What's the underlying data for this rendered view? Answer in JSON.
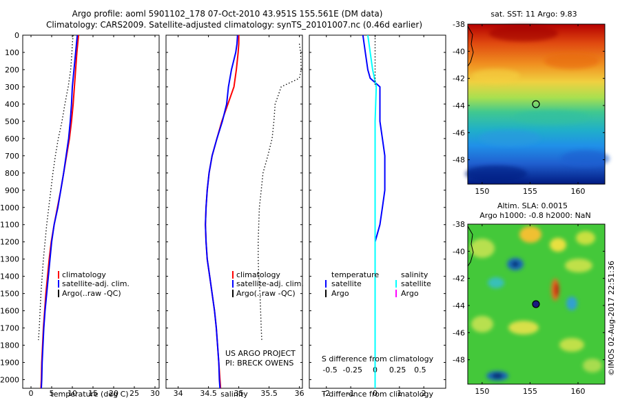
{
  "header": {
    "line1": "Argo profile: aoml 5901102_178 07-Oct-2010 43.951S 155.561E (DM data)",
    "line2": "Climatology: CARS2009. Satellite-adjusted climatology: synTS_20101007.nc (0.46d earlier)"
  },
  "depth_axis": {
    "ticks": [
      0,
      100,
      200,
      300,
      400,
      500,
      600,
      700,
      800,
      900,
      1000,
      1100,
      1200,
      1300,
      1400,
      1500,
      1600,
      1700,
      1800,
      1900,
      2000
    ],
    "range": [
      0,
      2050
    ],
    "inverted": true
  },
  "colors": {
    "climatology": "#ff0000",
    "satellite": "#0000ff",
    "argo": "#000000",
    "salinity_satellite": "#00ffff",
    "salinity_argo": "#ff00ff"
  },
  "chart_data": [
    {
      "type": "line",
      "title": "",
      "xlabel": "temperature (deg C)",
      "ylabel": "",
      "xlim": [
        -2,
        31
      ],
      "ylim": [
        2050,
        0
      ],
      "xticks": [
        0,
        5,
        10,
        15,
        20,
        25,
        30
      ],
      "legend": {
        "position": "bottom-right",
        "items": [
          "climatology",
          "satellite-adj. clim.",
          "Argo(..raw -QC)"
        ]
      },
      "series": [
        {
          "name": "climatology",
          "style": "solid",
          "points": [
            [
              11.5,
              0
            ],
            [
              11.3,
              50
            ],
            [
              11.1,
              100
            ],
            [
              10.8,
              200
            ],
            [
              10.5,
              300
            ],
            [
              10.2,
              400
            ],
            [
              9.8,
              500
            ],
            [
              9.3,
              600
            ],
            [
              8.6,
              700
            ],
            [
              7.9,
              800
            ],
            [
              7.2,
              900
            ],
            [
              6.4,
              1000
            ],
            [
              5.6,
              1100
            ],
            [
              4.9,
              1200
            ],
            [
              4.4,
              1300
            ],
            [
              4.0,
              1400
            ],
            [
              3.6,
              1500
            ],
            [
              3.3,
              1600
            ],
            [
              3.0,
              1700
            ],
            [
              2.8,
              1800
            ],
            [
              2.6,
              1900
            ],
            [
              2.5,
              2000
            ],
            [
              2.4,
              2050
            ]
          ]
        },
        {
          "name": "satellite-adj. clim.",
          "style": "solid",
          "points": [
            [
              11.2,
              0
            ],
            [
              11.0,
              50
            ],
            [
              10.8,
              100
            ],
            [
              10.4,
              200
            ],
            [
              10.0,
              300
            ],
            [
              9.8,
              400
            ],
            [
              9.5,
              500
            ],
            [
              9.1,
              600
            ],
            [
              8.5,
              700
            ],
            [
              7.9,
              800
            ],
            [
              7.2,
              900
            ],
            [
              6.5,
              1000
            ],
            [
              5.6,
              1100
            ],
            [
              5.0,
              1200
            ],
            [
              4.6,
              1300
            ],
            [
              4.2,
              1400
            ],
            [
              3.8,
              1500
            ],
            [
              3.4,
              1600
            ],
            [
              3.1,
              1700
            ],
            [
              2.9,
              1800
            ],
            [
              2.7,
              1900
            ],
            [
              2.6,
              2000
            ],
            [
              2.5,
              2050
            ]
          ]
        },
        {
          "name": "Argo(..raw -QC)",
          "style": "dotted",
          "points": [
            [
              10.2,
              0
            ],
            [
              10.0,
              50
            ],
            [
              9.9,
              100
            ],
            [
              9.6,
              200
            ],
            [
              9.0,
              300
            ],
            [
              8.2,
              400
            ],
            [
              7.5,
              500
            ],
            [
              6.6,
              600
            ],
            [
              5.9,
              700
            ],
            [
              5.3,
              800
            ],
            [
              4.8,
              900
            ],
            [
              4.3,
              1000
            ],
            [
              3.8,
              1100
            ],
            [
              3.4,
              1200
            ],
            [
              3.0,
              1300
            ],
            [
              2.7,
              1400
            ],
            [
              2.4,
              1500
            ],
            [
              2.2,
              1600
            ],
            [
              2.0,
              1700
            ],
            [
              1.8,
              1770
            ]
          ]
        }
      ]
    },
    {
      "type": "line",
      "title": "",
      "xlabel": "salinity",
      "ylabel": "",
      "xlim": [
        33.8,
        36.05
      ],
      "ylim": [
        2050,
        0
      ],
      "xticks": [
        34,
        34.5,
        35,
        35.5,
        36
      ],
      "legend": {
        "position": "bottom-right",
        "items": [
          "climatology",
          "satellite-adj. clim.",
          "Argo(..raw -QC)"
        ]
      },
      "series": [
        {
          "name": "climatology",
          "style": "solid",
          "points": [
            [
              35.0,
              0
            ],
            [
              35.0,
              50
            ],
            [
              34.99,
              100
            ],
            [
              34.96,
              200
            ],
            [
              34.92,
              300
            ],
            [
              34.82,
              400
            ],
            [
              34.72,
              500
            ],
            [
              34.64,
              600
            ],
            [
              34.56,
              700
            ],
            [
              34.51,
              800
            ],
            [
              34.48,
              900
            ],
            [
              34.46,
              1000
            ],
            [
              34.45,
              1100
            ],
            [
              34.46,
              1200
            ],
            [
              34.48,
              1300
            ],
            [
              34.52,
              1400
            ],
            [
              34.56,
              1500
            ],
            [
              34.6,
              1600
            ],
            [
              34.63,
              1700
            ],
            [
              34.65,
              1800
            ],
            [
              34.67,
              1900
            ],
            [
              34.69,
              2000
            ],
            [
              34.7,
              2050
            ]
          ]
        },
        {
          "name": "satellite-adj. clim.",
          "style": "solid",
          "points": [
            [
              34.98,
              0
            ],
            [
              34.97,
              50
            ],
            [
              34.95,
              100
            ],
            [
              34.88,
              200
            ],
            [
              34.83,
              300
            ],
            [
              34.8,
              400
            ],
            [
              34.73,
              500
            ],
            [
              34.64,
              600
            ],
            [
              34.56,
              700
            ],
            [
              34.51,
              800
            ],
            [
              34.48,
              900
            ],
            [
              34.46,
              1000
            ],
            [
              34.45,
              1100
            ],
            [
              34.46,
              1200
            ],
            [
              34.48,
              1300
            ],
            [
              34.52,
              1400
            ],
            [
              34.56,
              1500
            ],
            [
              34.6,
              1600
            ],
            [
              34.63,
              1700
            ],
            [
              34.65,
              1800
            ],
            [
              34.67,
              1900
            ],
            [
              34.68,
              2000
            ],
            [
              34.69,
              2050
            ]
          ]
        },
        {
          "name": "Argo(..raw -QC)",
          "style": "dotted",
          "points": [
            [
              36.0,
              50
            ],
            [
              36.02,
              100
            ],
            [
              36.03,
              200
            ],
            [
              36.0,
              250
            ],
            [
              35.7,
              300
            ],
            [
              35.6,
              400
            ],
            [
              35.58,
              500
            ],
            [
              35.55,
              600
            ],
            [
              35.48,
              700
            ],
            [
              35.4,
              800
            ],
            [
              35.37,
              900
            ],
            [
              35.34,
              1000
            ],
            [
              35.33,
              1100
            ],
            [
              35.32,
              1200
            ],
            [
              35.32,
              1300
            ],
            [
              35.33,
              1400
            ],
            [
              35.35,
              1500
            ],
            [
              35.36,
              1600
            ],
            [
              35.37,
              1700
            ],
            [
              35.38,
              1770
            ]
          ]
        }
      ]
    },
    {
      "type": "line",
      "title": "",
      "xlabel": "T difference from climatology",
      "ylabel": "",
      "xlim": [
        -2.7,
        2.9
      ],
      "ylim": [
        2050,
        0
      ],
      "xticks": [
        -2,
        -1,
        0,
        1,
        2
      ],
      "top_axis_label": "S difference from climatology",
      "top_ticks": [
        -0.5,
        -0.25,
        0,
        0.25,
        0.5
      ],
      "legend": {
        "position": "bottom",
        "headers": [
          "temperature",
          "salinity"
        ],
        "items": [
          [
            "satellite",
            "Argo"
          ],
          [
            "satellite",
            "Argo"
          ]
        ]
      },
      "series": [
        {
          "name": "temperature satellite",
          "style": "solid",
          "points": [
            [
              -0.5,
              0
            ],
            [
              -0.4,
              100
            ],
            [
              -0.3,
              200
            ],
            [
              -0.2,
              250
            ],
            [
              0.2,
              300
            ],
            [
              0.2,
              500
            ],
            [
              0.3,
              600
            ],
            [
              0.4,
              700
            ],
            [
              0.4,
              900
            ],
            [
              0.3,
              1000
            ],
            [
              0.2,
              1100
            ],
            [
              0.0,
              1200
            ]
          ]
        },
        {
          "name": "salinity satellite",
          "style": "solid",
          "points": [
            [
              -0.3,
              0
            ],
            [
              -0.2,
              100
            ],
            [
              -0.1,
              200
            ],
            [
              0.05,
              300
            ],
            [
              0.0,
              500
            ],
            [
              0.0,
              2050
            ]
          ]
        },
        {
          "name": "zero line",
          "style": "dotted",
          "points": [
            [
              0,
              0
            ],
            [
              0,
              300
            ]
          ]
        }
      ]
    },
    {
      "type": "heatmap",
      "title": "sat. SST: 11 Argo: 9.83",
      "xlim": [
        148.5,
        162.8
      ],
      "ylim": [
        -49.8,
        -38
      ],
      "xticks": [
        150,
        155,
        160
      ],
      "yticks": [
        -38,
        -40,
        -42,
        -44,
        -46,
        -48
      ],
      "marker": {
        "lon": 155.561,
        "lat": -43.951,
        "style": "open circle"
      }
    },
    {
      "type": "heatmap",
      "title": "Altim. SLA: 0.0015",
      "subtitle": "Argo h1000: -0.8 h2000: NaN",
      "xlim": [
        148.5,
        162.8
      ],
      "ylim": [
        -49.8,
        -38
      ],
      "xticks": [
        150,
        155,
        160
      ],
      "yticks": [
        -38,
        -40,
        -42,
        -44,
        -46,
        -48
      ],
      "marker": {
        "lon": 155.561,
        "lat": -43.951,
        "style": "filled circle"
      }
    }
  ],
  "legend_labels": {
    "climatology": "climatology",
    "satellite_adj": "satellite-adj. clim.",
    "argo_raw": "Argo(..raw -QC)",
    "temperature": "temperature",
    "salinity": "salinity",
    "satellite": "satellite",
    "argo": "Argo"
  },
  "credits": {
    "project": "US ARGO PROJECT",
    "pi": "PI: BRECK OWENS",
    "imos": "©IMOS 02-Aug-2017 22:51:36"
  }
}
